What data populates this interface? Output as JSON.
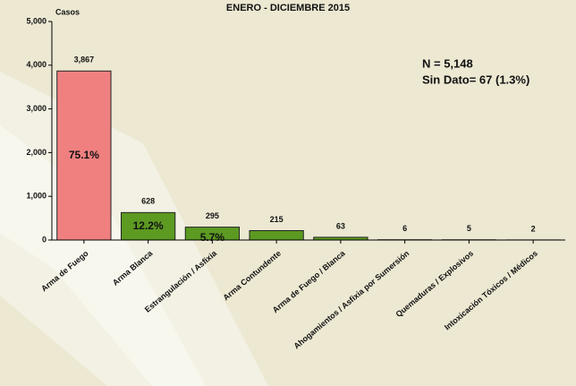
{
  "chart_data": {
    "type": "bar",
    "title": "ENERO - DICIEMBRE 2015",
    "y_label": "Casos",
    "categories": [
      "Arma de Fuego",
      "Arma Blanca",
      "Estrangulación / Asfixia",
      "Arma Contundente",
      "Arma de Fuego / Blanca",
      "Ahogamientos / Asfixia por Sumersión",
      "Quemaduras / Explosivos",
      "Intoxicación Tóxicos / Médicos"
    ],
    "values": [
      3867,
      628,
      295,
      215,
      63,
      6,
      5,
      2
    ],
    "value_labels": [
      "3,867",
      "628",
      "295",
      "215",
      "63",
      "6",
      "5",
      "2"
    ],
    "percent_labels": [
      "75.1%",
      "12.2%",
      "5.7%"
    ],
    "colors": [
      "#f08080",
      "#5c9a22",
      "#5c9a22",
      "#5c9a22",
      "#5c9a22",
      "#5c9a22",
      "#5c9a22",
      "#5c9a22"
    ],
    "ylim": [
      0,
      5000
    ],
    "yticks": [
      0,
      {
        "value": 1000,
        "label": "1,000"
      },
      {
        "value": 2000,
        "label": "2,000"
      },
      {
        "value": 3000,
        "label": "3,000"
      },
      {
        "value": 4000,
        "label": "4,000"
      },
      {
        "value": 5000,
        "label": "5,000"
      }
    ],
    "annotations": [
      "N = 5,148",
      "Sin Dato= 67 (1.3%)"
    ]
  }
}
